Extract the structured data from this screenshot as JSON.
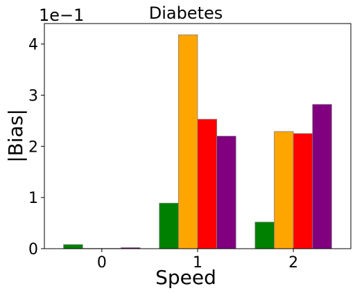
{
  "chart_data": {
    "type": "bar",
    "title": "Diabetes",
    "xlabel": "Speed",
    "ylabel": "|Bias|",
    "offset_text": "1e−1",
    "categories": [
      "0",
      "1",
      "2"
    ],
    "y_ticks": [
      "0",
      "1",
      "2",
      "3",
      "4"
    ],
    "ylim": [
      0,
      4.4
    ],
    "grid": false,
    "series": [
      {
        "color": "#008000",
        "values": [
          0.08,
          0.89,
          0.52
        ]
      },
      {
        "color": "#FFA500",
        "values": [
          0.005,
          4.18,
          2.29
        ]
      },
      {
        "color": "#FF0000",
        "values": [
          0.005,
          2.53,
          2.25
        ]
      },
      {
        "color": "#800080",
        "values": [
          0.02,
          2.2,
          2.82
        ]
      }
    ]
  }
}
